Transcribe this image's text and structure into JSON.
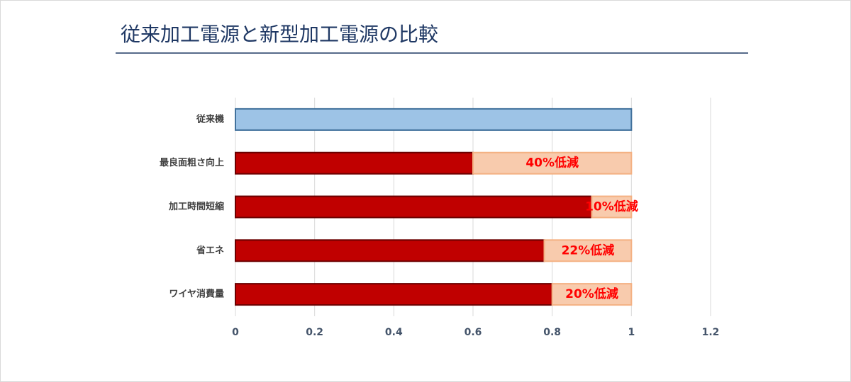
{
  "chart_data": {
    "type": "stacked-barh",
    "title": "従来加工電源と新型加工電源の比較",
    "categories": [
      "従来機",
      "最良面粗さ向上",
      "加工時間短縮",
      "省エネ",
      "ワイヤ消費量"
    ],
    "series": [
      {
        "values": [
          1,
          0.6,
          0.9,
          0.78,
          0.8
        ],
        "colors": [
          "#9dc3e6",
          "#c00000",
          "#c00000",
          "#c00000",
          "#c00000"
        ],
        "edge_colors": [
          "#41719c",
          "#6b0000",
          "#6b0000",
          "#6b0000",
          "#6b0000"
        ]
      },
      {
        "values": [
          null,
          0.4,
          0.1,
          0.22,
          0.2
        ],
        "value_labels": [
          null,
          "40%低減",
          "10%低減",
          "22%低減",
          "20%低減"
        ],
        "color": "#f8cbad",
        "edge_color": "#f4b183",
        "label_color": "#ff0000"
      }
    ],
    "xlim": [
      0,
      1.2
    ],
    "xticks": [
      0,
      0.2,
      0.4,
      0.6,
      0.8,
      1,
      1.2
    ],
    "grid": true
  }
}
